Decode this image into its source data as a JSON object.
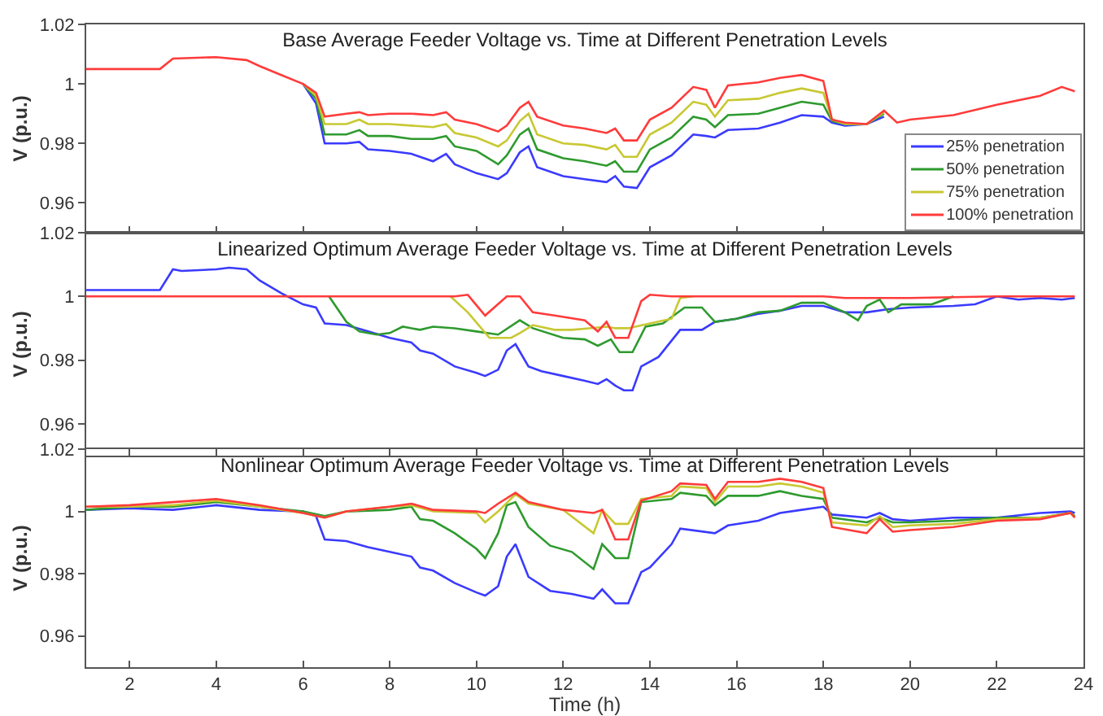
{
  "chart_data": [
    {
      "type": "line",
      "title": "Base Average Feeder Voltage vs. Time at Different Penetration Levels",
      "ylabel": "V (p.u.)",
      "xlim": [
        1,
        24
      ],
      "xticks": [
        2,
        4,
        6,
        8,
        10,
        12,
        14,
        16,
        18,
        20,
        22,
        24
      ],
      "ylim": [
        0.95,
        1.02
      ],
      "yticks": [
        0.96,
        0.98,
        1,
        1.02
      ],
      "tick_labels": "y",
      "legend": "bottom right",
      "series": [
        {
          "name": "25% penetration",
          "color": "#3a3aff",
          "x": [
            6,
            6.3,
            6.5,
            7,
            7.3,
            7.5,
            8,
            8.5,
            9,
            9.3,
            9.5,
            10,
            10.5,
            10.7,
            11,
            11.2,
            11.4,
            12,
            12.5,
            13,
            13.2,
            13.4,
            13.7,
            14,
            14.5,
            15,
            15.3,
            15.5,
            15.8,
            16.5,
            17,
            17.5,
            18,
            18.2,
            18.5,
            19,
            19.4
          ],
          "values": [
            1.0,
            0.9935,
            0.98,
            0.98,
            0.9805,
            0.978,
            0.9775,
            0.9765,
            0.974,
            0.9765,
            0.973,
            0.97,
            0.968,
            0.97,
            0.977,
            0.979,
            0.972,
            0.969,
            0.968,
            0.967,
            0.969,
            0.9655,
            0.965,
            0.972,
            0.976,
            0.983,
            0.9825,
            0.982,
            0.9845,
            0.985,
            0.987,
            0.9895,
            0.989,
            0.987,
            0.986,
            0.9865,
            0.989
          ]
        },
        {
          "name": "50% penetration",
          "color": "#2e9a2e",
          "x": [
            6,
            6.3,
            6.5,
            7,
            7.3,
            7.5,
            8,
            8.5,
            9,
            9.3,
            9.5,
            10,
            10.5,
            10.7,
            11,
            11.2,
            11.4,
            12,
            12.5,
            13,
            13.2,
            13.4,
            13.7,
            14,
            14.5,
            15,
            15.3,
            15.5,
            15.8,
            16.5,
            17,
            17.5,
            18,
            18.2,
            18.5,
            19,
            19.4
          ],
          "values": [
            1.0,
            0.995,
            0.983,
            0.983,
            0.9845,
            0.9825,
            0.9825,
            0.9815,
            0.9815,
            0.9825,
            0.979,
            0.9775,
            0.973,
            0.976,
            0.983,
            0.985,
            0.978,
            0.975,
            0.974,
            0.9725,
            0.974,
            0.9705,
            0.9705,
            0.978,
            0.982,
            0.989,
            0.988,
            0.9855,
            0.9895,
            0.99,
            0.992,
            0.994,
            0.993,
            0.9875,
            0.9865,
            0.9865,
            0.99
          ]
        },
        {
          "name": "75% penetration",
          "color": "#c8c832",
          "x": [
            6,
            6.3,
            6.5,
            7,
            7.3,
            7.5,
            8,
            8.5,
            9,
            9.3,
            9.5,
            10,
            10.5,
            10.7,
            11,
            11.2,
            11.4,
            12,
            12.5,
            13,
            13.2,
            13.4,
            13.7,
            14,
            14.5,
            15,
            15.3,
            15.5,
            15.8,
            16.5,
            17,
            17.5,
            18,
            18.2,
            18.5,
            19,
            19.4
          ],
          "values": [
            1.0,
            0.996,
            0.9865,
            0.9865,
            0.988,
            0.9865,
            0.9865,
            0.986,
            0.9855,
            0.9865,
            0.9835,
            0.982,
            0.979,
            0.981,
            0.9875,
            0.99,
            0.983,
            0.98,
            0.9795,
            0.978,
            0.9795,
            0.9755,
            0.9755,
            0.983,
            0.987,
            0.994,
            0.993,
            0.989,
            0.9945,
            0.995,
            0.997,
            0.9985,
            0.997,
            0.988,
            0.9865,
            0.9865,
            0.9905
          ]
        },
        {
          "name": "100% penetration",
          "color": "#ff3b3b",
          "x": [
            1,
            2,
            2.7,
            3,
            4,
            4.7,
            5,
            5.5,
            6,
            6.3,
            6.5,
            7,
            7.3,
            7.5,
            8,
            8.5,
            9,
            9.3,
            9.5,
            10,
            10.5,
            10.7,
            11,
            11.2,
            11.4,
            12,
            12.5,
            13,
            13.2,
            13.4,
            13.7,
            14,
            14.5,
            15,
            15.3,
            15.5,
            15.8,
            16.5,
            17,
            17.5,
            18,
            18.2,
            18.5,
            19,
            19.4,
            19.7,
            20,
            21,
            22,
            23,
            23.5,
            23.8
          ],
          "values": [
            1.005,
            1.005,
            1.005,
            1.0085,
            1.009,
            1.008,
            1.006,
            1.003,
            1.0,
            0.997,
            0.989,
            0.99,
            0.9905,
            0.9895,
            0.99,
            0.99,
            0.9895,
            0.9905,
            0.988,
            0.9865,
            0.984,
            0.986,
            0.992,
            0.994,
            0.989,
            0.986,
            0.985,
            0.9835,
            0.985,
            0.981,
            0.981,
            0.988,
            0.992,
            0.999,
            0.998,
            0.992,
            0.9995,
            1.0005,
            1.002,
            1.003,
            1.001,
            0.988,
            0.987,
            0.9865,
            0.991,
            0.987,
            0.988,
            0.9895,
            0.993,
            0.996,
            0.999,
            0.9975
          ]
        }
      ]
    },
    {
      "type": "line",
      "title": "Linearized Optimum Average Feeder Voltage vs. Time at Different Penetration Levels",
      "ylabel": "V (p.u.)",
      "xlim": [
        1,
        24
      ],
      "xticks": [
        2,
        4,
        6,
        8,
        10,
        12,
        14,
        16,
        18,
        20,
        22,
        24
      ],
      "ylim": [
        0.95,
        1.02
      ],
      "yticks": [
        0.96,
        0.98,
        1,
        1.02
      ],
      "tick_labels": "y",
      "legend": false,
      "series": [
        {
          "color": "#3a3aff",
          "x": [
            1,
            2,
            2.7,
            3,
            3.2,
            4,
            4.3,
            4.7,
            5,
            5.5,
            6,
            6.3,
            6.5,
            7,
            7.5,
            8,
            8.5,
            8.7,
            9,
            9.5,
            10,
            10.2,
            10.5,
            10.7,
            10.9,
            11.2,
            11.5,
            12,
            12.5,
            12.8,
            13,
            13.2,
            13.4,
            13.6,
            13.8,
            14.2,
            14.7,
            15.2,
            15.5,
            16,
            16.5,
            17,
            17.5,
            18,
            18.5,
            19,
            19.5,
            20,
            21,
            21.5,
            22,
            22.5,
            23,
            23.5,
            23.8
          ],
          "values": [
            1.002,
            1.002,
            1.002,
            1.0085,
            1.008,
            1.0085,
            1.009,
            1.0085,
            1.005,
            1.001,
            0.9975,
            0.9965,
            0.9915,
            0.991,
            0.989,
            0.987,
            0.9855,
            0.983,
            0.982,
            0.978,
            0.976,
            0.975,
            0.977,
            0.983,
            0.985,
            0.978,
            0.9765,
            0.975,
            0.9735,
            0.9725,
            0.974,
            0.972,
            0.9705,
            0.9705,
            0.978,
            0.981,
            0.9895,
            0.9895,
            0.992,
            0.993,
            0.9945,
            0.9955,
            0.997,
            0.997,
            0.995,
            0.995,
            0.996,
            0.9965,
            0.997,
            0.9975,
            1.0,
            0.999,
            0.9995,
            0.999,
            0.9995
          ]
        },
        {
          "color": "#2e9a2e",
          "x": [
            6.6,
            7,
            7.3,
            7.7,
            8,
            8.3,
            8.7,
            9,
            9.5,
            10,
            10.5,
            11,
            11.3,
            12,
            12.5,
            12.8,
            13.1,
            13.3,
            13.6,
            13.9,
            14.3,
            14.8,
            15.2,
            15.5,
            16,
            16.5,
            17,
            17.5,
            18,
            18.5,
            18.8,
            19,
            19.3,
            19.5,
            19.8,
            20.5,
            21
          ],
          "values": [
            1.0,
            0.992,
            0.989,
            0.988,
            0.9885,
            0.9905,
            0.9895,
            0.9905,
            0.99,
            0.989,
            0.988,
            0.9925,
            0.99,
            0.987,
            0.9865,
            0.9845,
            0.9865,
            0.9825,
            0.9825,
            0.9905,
            0.9915,
            0.9965,
            0.9965,
            0.992,
            0.993,
            0.995,
            0.9955,
            0.998,
            0.998,
            0.995,
            0.9925,
            0.997,
            0.999,
            0.995,
            0.9975,
            0.9975,
            1.0
          ]
        },
        {
          "color": "#c8c832",
          "x": [
            9.4,
            9.8,
            10.3,
            10.8,
            11,
            11.3,
            11.8,
            12.2,
            12.6,
            13,
            13.2,
            13.5,
            14,
            14.5,
            14.7,
            15
          ],
          "values": [
            1.0,
            0.995,
            0.987,
            0.987,
            0.9885,
            0.991,
            0.9895,
            0.9895,
            0.99,
            0.9905,
            0.99,
            0.99,
            0.9915,
            0.993,
            0.9995,
            1.0
          ]
        },
        {
          "color": "#ff3b3b",
          "x": [
            1,
            9.5,
            9.8,
            10.2,
            10.7,
            11,
            11.3,
            11.8,
            12.5,
            12.8,
            13,
            13.2,
            13.5,
            13.8,
            14,
            14.5,
            18,
            18.5,
            20,
            22,
            23.8
          ],
          "values": [
            1.0,
            1.0,
            1.0005,
            0.994,
            1.0,
            1.0,
            0.995,
            0.994,
            0.9925,
            0.989,
            0.992,
            0.987,
            0.987,
            0.9985,
            1.0005,
            1.0,
            1.0,
            0.9995,
            0.9995,
            1.0,
            1.0
          ]
        }
      ]
    },
    {
      "type": "line",
      "title": "Nonlinear Optimum Average Feeder Voltage vs. Time at Different Penetration Levels",
      "xlabel": "Time (h)",
      "ylabel": "V (p.u.)",
      "xlim": [
        1,
        24
      ],
      "xticks": [
        2,
        4,
        6,
        8,
        10,
        12,
        14,
        16,
        18,
        20,
        22,
        24
      ],
      "ylim": [
        0.95,
        1.02
      ],
      "yticks": [
        0.96,
        0.98,
        1,
        1.02
      ],
      "legend": false,
      "series": [
        {
          "color": "#3a3aff",
          "x": [
            1,
            2,
            3,
            4,
            5,
            6,
            6.3,
            6.5,
            7,
            7.5,
            8,
            8.5,
            8.7,
            9,
            9.5,
            10,
            10.2,
            10.5,
            10.7,
            10.9,
            11.2,
            11.7,
            12.2,
            12.7,
            12.9,
            13.2,
            13.5,
            13.8,
            14,
            14.5,
            14.7,
            15.5,
            15.8,
            16.5,
            17,
            17.5,
            18,
            18.2,
            19,
            19.3,
            19.6,
            20,
            21,
            22,
            23,
            23.7,
            23.8
          ],
          "values": [
            1.0005,
            1.001,
            1.0005,
            1.002,
            1.0005,
            1.0,
            0.9985,
            0.991,
            0.9905,
            0.9885,
            0.987,
            0.9855,
            0.982,
            0.981,
            0.977,
            0.974,
            0.973,
            0.976,
            0.9855,
            0.9895,
            0.979,
            0.9745,
            0.9735,
            0.972,
            0.975,
            0.9705,
            0.9705,
            0.9805,
            0.982,
            0.9895,
            0.9945,
            0.993,
            0.9955,
            0.997,
            0.9995,
            1.0005,
            1.0015,
            0.999,
            0.998,
            0.9995,
            0.9975,
            0.997,
            0.998,
            0.998,
            0.9995,
            1.0,
            0.9995
          ]
        },
        {
          "color": "#2e9a2e",
          "x": [
            1,
            2,
            3,
            4,
            5,
            6,
            6.5,
            7,
            8,
            8.5,
            8.7,
            9,
            9.5,
            10,
            10.2,
            10.5,
            10.7,
            10.9,
            11.2,
            11.7,
            12.2,
            12.7,
            12.9,
            13.2,
            13.5,
            13.8,
            14.5,
            14.7,
            15.3,
            15.5,
            15.8,
            16.5,
            17,
            17.5,
            18,
            18.2,
            19,
            19.3,
            19.6,
            20,
            21,
            22,
            23,
            23.7,
            23.8
          ],
          "values": [
            1.0005,
            1.0015,
            1.0015,
            1.003,
            1.0015,
            1.0,
            0.9985,
            1.0,
            1.0005,
            1.0015,
            0.9975,
            0.997,
            0.993,
            0.988,
            0.985,
            0.993,
            1.002,
            1.003,
            0.995,
            0.989,
            0.987,
            0.9815,
            0.9895,
            0.985,
            0.985,
            1.003,
            1.004,
            1.006,
            1.005,
            1.002,
            1.005,
            1.005,
            1.0065,
            1.005,
            1.004,
            0.998,
            0.9965,
            0.998,
            0.9965,
            0.9965,
            0.997,
            0.998,
            0.998,
            0.9995,
            0.9985
          ]
        },
        {
          "color": "#c8c832",
          "x": [
            1,
            2,
            3,
            4,
            5,
            6,
            6.5,
            7,
            8,
            8.5,
            9,
            10,
            10.2,
            10.5,
            10.9,
            11.2,
            12,
            12.7,
            12.9,
            13.2,
            13.5,
            13.8,
            14.5,
            14.7,
            15.3,
            15.5,
            15.8,
            16.5,
            17,
            17.5,
            18,
            18.2,
            19,
            19.3,
            19.6,
            20,
            21,
            22,
            23,
            23.7,
            23.8
          ],
          "values": [
            1.0015,
            1.0015,
            1.002,
            1.0035,
            1.0015,
            0.9995,
            0.998,
            1.0,
            1.0015,
            1.002,
            1.0,
            0.9995,
            0.9965,
            1.0,
            1.0055,
            1.0025,
            1.0005,
            0.993,
            1.0005,
            0.996,
            0.996,
            1.004,
            1.005,
            1.008,
            1.0075,
            1.003,
            1.008,
            1.008,
            1.009,
            1.008,
            1.006,
            0.9965,
            0.9955,
            0.9985,
            0.995,
            0.9955,
            0.996,
            0.9975,
            0.998,
            0.9995,
            0.998
          ]
        },
        {
          "color": "#ff3b3b",
          "x": [
            1,
            2,
            3,
            4,
            5,
            6,
            6.5,
            7,
            8,
            8.5,
            9,
            10,
            10.2,
            10.5,
            10.9,
            11.2,
            12,
            12.7,
            12.9,
            13.2,
            13.5,
            13.8,
            14.5,
            14.7,
            15.3,
            15.5,
            15.8,
            16.5,
            17,
            17.5,
            18,
            18.2,
            19,
            19.3,
            19.6,
            20,
            21,
            22,
            23,
            23.7,
            23.8
          ],
          "values": [
            1.0015,
            1.002,
            1.003,
            1.004,
            1.002,
            0.9995,
            0.998,
            1.0,
            1.0015,
            1.0025,
            1.0005,
            1.0,
            0.9995,
            1.0025,
            1.006,
            1.003,
            1.0005,
            0.9995,
            1.0005,
            0.991,
            0.991,
            1.0035,
            1.0065,
            1.009,
            1.0085,
            1.004,
            1.0095,
            1.0095,
            1.0105,
            1.0095,
            1.0075,
            0.995,
            0.993,
            0.9975,
            0.9935,
            0.994,
            0.995,
            0.997,
            0.9975,
            0.9995,
            0.998
          ]
        }
      ]
    }
  ]
}
